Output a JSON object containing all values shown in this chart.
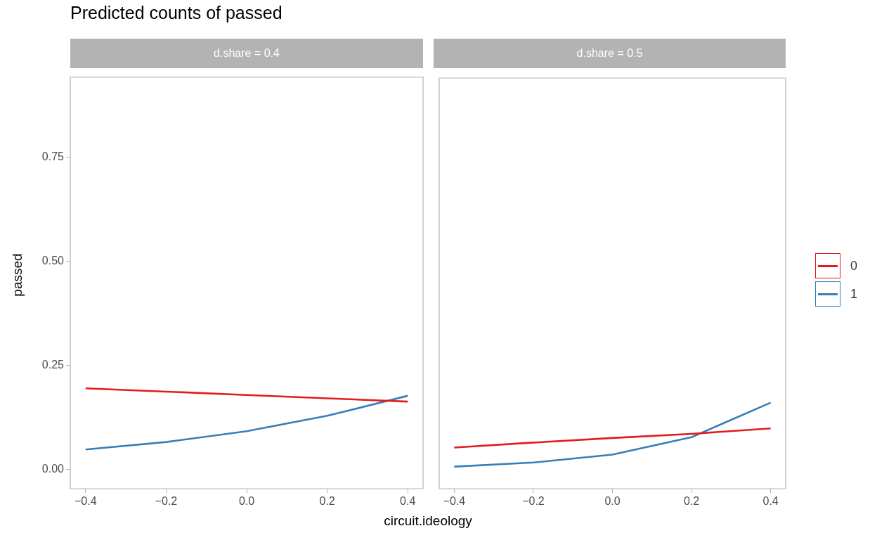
{
  "chart_data": [
    {
      "type": "line",
      "title": "Predicted counts of passed",
      "subtitle": "d.share = 0.4",
      "xlabel": "circuit.ideology",
      "ylabel": "passed",
      "legend": "right",
      "x": [
        -0.4,
        -0.2,
        0,
        0.2,
        0.4
      ],
      "xlim": [
        -0.438,
        0.438
      ],
      "xticks": [
        {
          "value": -0.4,
          "label": "−0.4"
        },
        {
          "value": -0.2,
          "label": "−0.2"
        },
        {
          "value": 0,
          "label": "0.0"
        },
        {
          "value": 0.2,
          "label": "0.2"
        },
        {
          "value": 0.4,
          "label": "0.4"
        }
      ],
      "ylim": [
        -0.046,
        0.942
      ],
      "yticks": [
        {
          "value": 0,
          "label": "0.00"
        },
        {
          "value": 0.25,
          "label": "0.25"
        },
        {
          "value": 0.5,
          "label": "0.50"
        },
        {
          "value": 0.75,
          "label": "0.75"
        }
      ],
      "series": [
        {
          "name": "0",
          "color": "#e41a1c",
          "values": [
            0.195,
            0.187,
            0.179,
            0.171,
            0.163
          ]
        },
        {
          "name": "1",
          "color": "#377eb8",
          "values": [
            0.048,
            0.066,
            0.092,
            0.129,
            0.177
          ]
        }
      ]
    },
    {
      "type": "line",
      "subtitle": "d.share = 0.5",
      "legend": "right",
      "tick_labels": "x",
      "x": [
        -0.4,
        -0.2,
        0,
        0.2,
        0.4
      ],
      "xlim": [
        -0.438,
        0.438
      ],
      "xticks": [
        {
          "value": -0.4,
          "label": "−0.4"
        },
        {
          "value": -0.2,
          "label": "−0.2"
        },
        {
          "value": 0,
          "label": "0.0"
        },
        {
          "value": 0.2,
          "label": "0.2"
        },
        {
          "value": 0.4,
          "label": "0.4"
        }
      ],
      "ylim": [
        -0.046,
        0.942
      ],
      "series": [
        {
          "name": "0",
          "color": "#e41a1c",
          "values": [
            0.053,
            0.065,
            0.076,
            0.086,
            0.099
          ]
        },
        {
          "name": "1",
          "color": "#377eb8",
          "values": [
            0.007,
            0.017,
            0.036,
            0.078,
            0.161
          ]
        }
      ]
    }
  ]
}
